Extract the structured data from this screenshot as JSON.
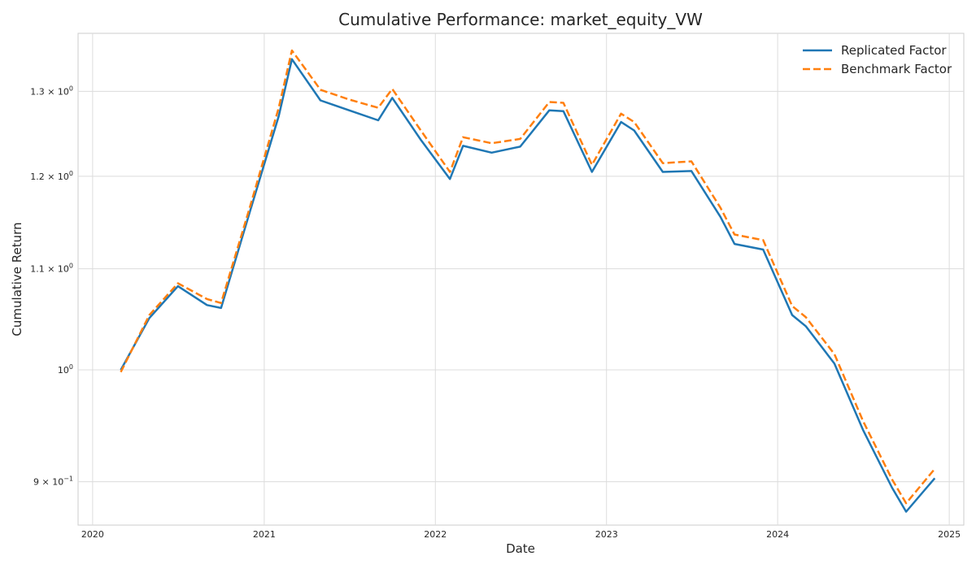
{
  "chart_data": {
    "type": "line",
    "title": "Cumulative Performance: market_equity_VW",
    "xlabel": "Date",
    "ylabel": "Cumulative Return",
    "yscale": "log",
    "grid": true,
    "legend_position": "top-right",
    "xlim": [
      "2019-12-01",
      "2025-02-01"
    ],
    "ylim": [
      0.864,
      1.373
    ],
    "x_ticks": [
      {
        "value": "2020-01-01",
        "label": "2020"
      },
      {
        "value": "2021-01-01",
        "label": "2021"
      },
      {
        "value": "2022-01-01",
        "label": "2022"
      },
      {
        "value": "2023-01-01",
        "label": "2023"
      },
      {
        "value": "2024-01-01",
        "label": "2024"
      },
      {
        "value": "2025-01-01",
        "label": "2025"
      }
    ],
    "y_ticks": [
      {
        "value": 0.9,
        "base": "9 × 10",
        "exp": "−1"
      },
      {
        "value": 1.0,
        "base": "10",
        "exp": "0"
      },
      {
        "value": 1.1,
        "base": "1.1 × 10",
        "exp": "0"
      },
      {
        "value": 1.2,
        "base": "1.2 × 10",
        "exp": "0"
      },
      {
        "value": 1.3,
        "base": "1.3 × 10",
        "exp": "0"
      }
    ],
    "series": [
      {
        "name": "Replicated Factor",
        "color": "#1f77b4",
        "style": "solid",
        "points": [
          [
            "2020-03-01",
            1.0
          ],
          [
            "2020-05-01",
            1.05
          ],
          [
            "2020-07-01",
            1.082
          ],
          [
            "2020-09-01",
            1.063
          ],
          [
            "2020-10-01",
            1.06
          ],
          [
            "2020-12-01",
            1.16
          ],
          [
            "2021-02-01",
            1.27
          ],
          [
            "2021-03-01",
            1.34
          ],
          [
            "2021-05-01",
            1.289
          ],
          [
            "2021-07-01",
            1.277
          ],
          [
            "2021-09-01",
            1.265
          ],
          [
            "2021-10-01",
            1.292
          ],
          [
            "2021-12-01",
            1.242
          ],
          [
            "2022-02-01",
            1.197
          ],
          [
            "2022-03-01",
            1.235
          ],
          [
            "2022-05-01",
            1.227
          ],
          [
            "2022-07-01",
            1.234
          ],
          [
            "2022-09-01",
            1.277
          ],
          [
            "2022-10-01",
            1.276
          ],
          [
            "2022-12-01",
            1.205
          ],
          [
            "2023-02-01",
            1.263
          ],
          [
            "2023-03-01",
            1.253
          ],
          [
            "2023-05-01",
            1.205
          ],
          [
            "2023-07-01",
            1.206
          ],
          [
            "2023-09-01",
            1.155
          ],
          [
            "2023-10-01",
            1.126
          ],
          [
            "2023-12-01",
            1.12
          ],
          [
            "2024-02-01",
            1.053
          ],
          [
            "2024-03-01",
            1.042
          ],
          [
            "2024-05-01",
            1.006
          ],
          [
            "2024-07-01",
            0.945
          ],
          [
            "2024-09-01",
            0.895
          ],
          [
            "2024-10-01",
            0.875
          ],
          [
            "2024-12-01",
            0.903
          ]
        ]
      },
      {
        "name": "Benchmark Factor",
        "color": "#ff7f0e",
        "style": "dashed",
        "points": [
          [
            "2020-03-01",
            0.998
          ],
          [
            "2020-05-01",
            1.053
          ],
          [
            "2020-07-01",
            1.085
          ],
          [
            "2020-09-01",
            1.069
          ],
          [
            "2020-10-01",
            1.065
          ],
          [
            "2020-12-01",
            1.165
          ],
          [
            "2021-02-01",
            1.28
          ],
          [
            "2021-03-01",
            1.351
          ],
          [
            "2021-05-01",
            1.302
          ],
          [
            "2021-07-01",
            1.29
          ],
          [
            "2021-09-01",
            1.28
          ],
          [
            "2021-10-01",
            1.303
          ],
          [
            "2021-12-01",
            1.253
          ],
          [
            "2022-02-01",
            1.205
          ],
          [
            "2022-03-01",
            1.245
          ],
          [
            "2022-05-01",
            1.238
          ],
          [
            "2022-07-01",
            1.243
          ],
          [
            "2022-09-01",
            1.287
          ],
          [
            "2022-10-01",
            1.286
          ],
          [
            "2022-12-01",
            1.213
          ],
          [
            "2023-02-01",
            1.273
          ],
          [
            "2023-03-01",
            1.263
          ],
          [
            "2023-05-01",
            1.215
          ],
          [
            "2023-07-01",
            1.217
          ],
          [
            "2023-09-01",
            1.165
          ],
          [
            "2023-10-01",
            1.136
          ],
          [
            "2023-12-01",
            1.13
          ],
          [
            "2024-02-01",
            1.062
          ],
          [
            "2024-03-01",
            1.051
          ],
          [
            "2024-05-01",
            1.015
          ],
          [
            "2024-07-01",
            0.953
          ],
          [
            "2024-09-01",
            0.902
          ],
          [
            "2024-10-01",
            0.882
          ],
          [
            "2024-12-01",
            0.911
          ]
        ]
      }
    ]
  }
}
